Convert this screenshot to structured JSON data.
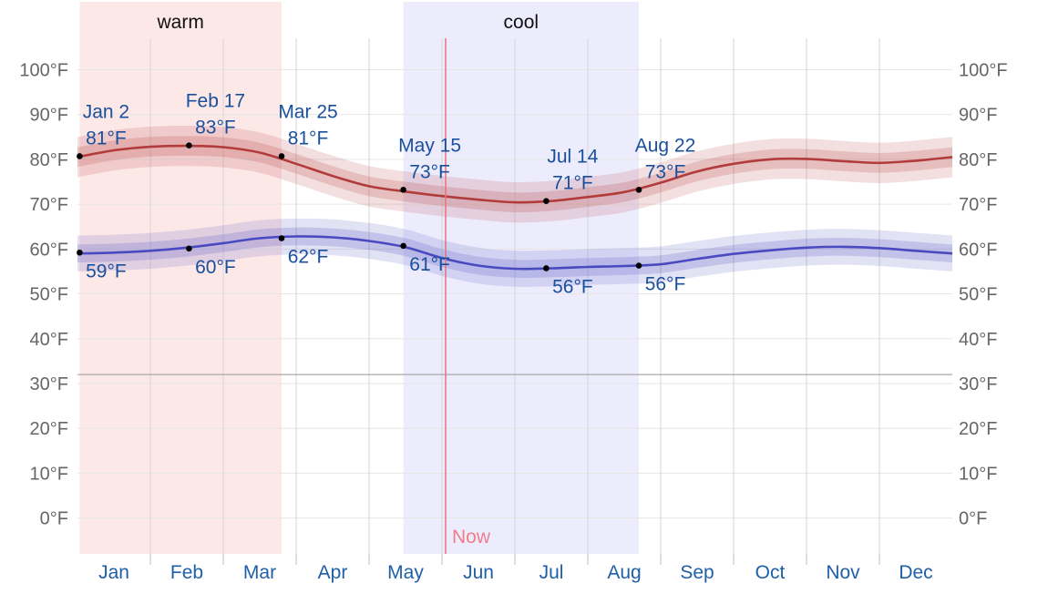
{
  "chart_data": {
    "type": "line",
    "x_unit": "month",
    "ylim": [
      -8,
      107
    ],
    "y_ticks": [
      {
        "value": 100,
        "label": "100°F"
      },
      {
        "value": 90,
        "label": "90°F"
      },
      {
        "value": 80,
        "label": "80°F"
      },
      {
        "value": 70,
        "label": "70°F"
      },
      {
        "value": 60,
        "label": "60°F"
      },
      {
        "value": 50,
        "label": "50°F"
      },
      {
        "value": 40,
        "label": "40°F"
      },
      {
        "value": 30,
        "label": "30°F"
      },
      {
        "value": 20,
        "label": "20°F"
      },
      {
        "value": 10,
        "label": "10°F"
      },
      {
        "value": 0,
        "label": "0°F"
      }
    ],
    "months": [
      "Jan",
      "Feb",
      "Mar",
      "Apr",
      "May",
      "Jun",
      "Jul",
      "Aug",
      "Sep",
      "Oct",
      "Nov",
      "Dec"
    ],
    "freezing_line": 32,
    "seasons": [
      {
        "label": "warm",
        "start": 0.03,
        "end": 2.8,
        "color": "#fde8e8"
      },
      {
        "label": "cool",
        "start": 4.47,
        "end": 7.7,
        "color": "#ececfd"
      }
    ],
    "now": {
      "label": "Now",
      "x": 5.05,
      "color": "#e8707e"
    },
    "series": [
      {
        "key": "high",
        "color": "#b23b3b",
        "x": [
          0,
          0.5,
          1,
          1.5,
          2,
          2.5,
          3,
          3.5,
          4,
          4.5,
          5,
          5.5,
          6,
          6.5,
          7,
          7.5,
          8,
          8.5,
          9,
          9.5,
          10,
          10.5,
          11,
          11.5,
          12
        ],
        "values": [
          80.5,
          82,
          82.8,
          83,
          82.7,
          81.5,
          79,
          76.3,
          74,
          72.8,
          71.8,
          71,
          70.4,
          70.7,
          71.6,
          72.7,
          74.8,
          77.3,
          79,
          80,
          80.1,
          79.6,
          79.2,
          79.7,
          80.5
        ],
        "band_inner": 2.2,
        "band_outer": 4.5
      },
      {
        "key": "low",
        "color": "#4a4ac0",
        "x": [
          0,
          0.5,
          1,
          1.5,
          2,
          2.5,
          3,
          3.5,
          4,
          4.5,
          5,
          5.5,
          6,
          6.5,
          7,
          7.5,
          8,
          8.5,
          9,
          9.5,
          10,
          10.5,
          11,
          11.5,
          12
        ],
        "values": [
          59,
          59.2,
          59.6,
          60.3,
          61.3,
          62.4,
          62.8,
          62.6,
          61.8,
          60.4,
          58,
          56.3,
          55.6,
          55.7,
          56,
          56.2,
          56.6,
          57.8,
          58.9,
          59.7,
          60.3,
          60.5,
          60.2,
          59.6,
          59
        ]
      }
    ],
    "annotations": [
      {
        "series": "high",
        "x": 0.03,
        "y": 80.7,
        "date": "Jan 2",
        "value": "81°F",
        "position": "above"
      },
      {
        "series": "high",
        "x": 1.53,
        "y": 83.1,
        "date": "Feb 17",
        "value": "83°F",
        "position": "above"
      },
      {
        "series": "high",
        "x": 2.8,
        "y": 80.7,
        "date": "Mar 25",
        "value": "81°F",
        "position": "above"
      },
      {
        "series": "high",
        "x": 4.47,
        "y": 73.2,
        "date": "May 15",
        "value": "73°F",
        "position": "above"
      },
      {
        "series": "high",
        "x": 6.43,
        "y": 70.7,
        "date": "Jul 14",
        "value": "71°F",
        "position": "above"
      },
      {
        "series": "high",
        "x": 7.7,
        "y": 73.2,
        "date": "Aug 22",
        "value": "73°F",
        "position": "above"
      },
      {
        "series": "low",
        "x": 0.03,
        "y": 59.2,
        "value": "59°F",
        "position": "below"
      },
      {
        "series": "low",
        "x": 1.53,
        "y": 60.1,
        "value": "60°F",
        "position": "below"
      },
      {
        "series": "low",
        "x": 2.8,
        "y": 62.4,
        "value": "62°F",
        "position": "below"
      },
      {
        "series": "low",
        "x": 4.47,
        "y": 60.7,
        "value": "61°F",
        "position": "below"
      },
      {
        "series": "low",
        "x": 6.43,
        "y": 55.7,
        "value": "56°F",
        "position": "below"
      },
      {
        "series": "low",
        "x": 7.7,
        "y": 56.3,
        "value": "56°F",
        "position": "below"
      }
    ],
    "grid": true,
    "legend": "none"
  }
}
